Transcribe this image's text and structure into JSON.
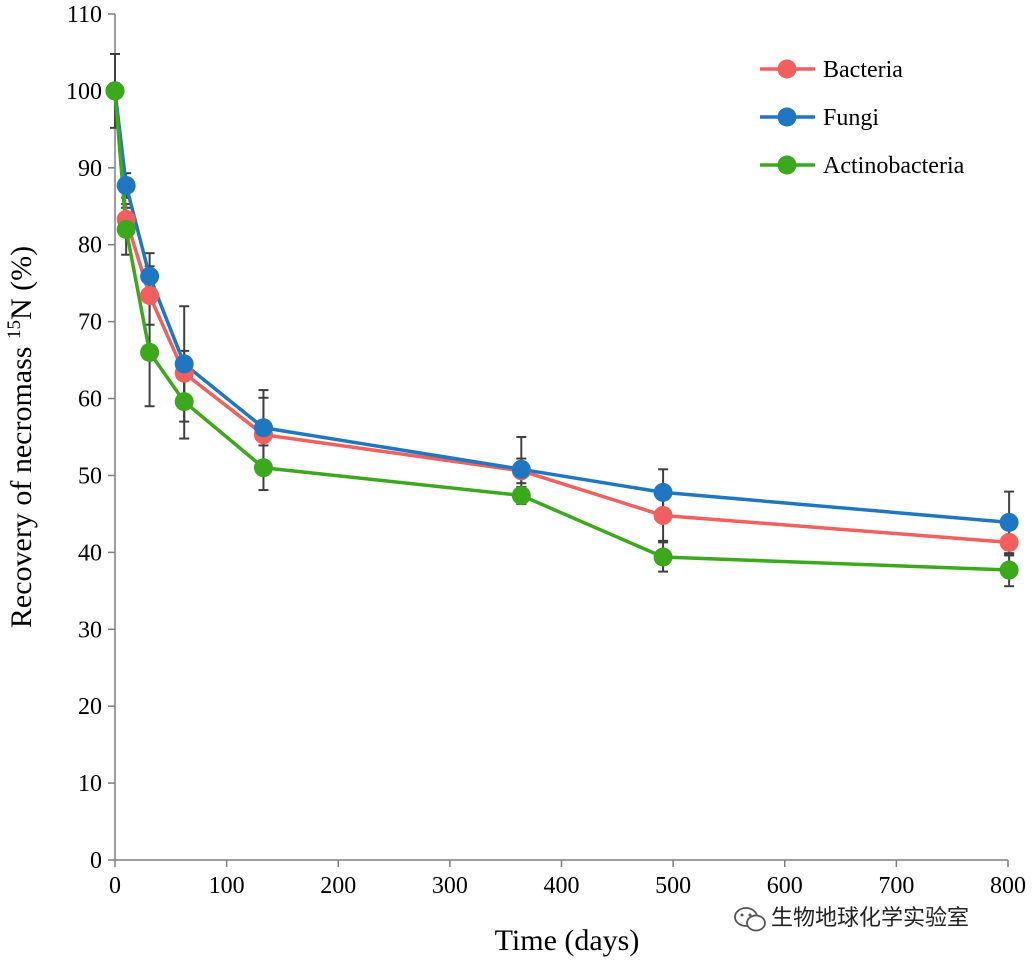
{
  "chart_data": {
    "type": "line",
    "xlabel": "Time (days)",
    "ylabel_parts": {
      "prefix": "Recovery of necromass ",
      "sup": "15",
      "suffix": "N (%)"
    },
    "xlim": [
      0,
      800
    ],
    "ylim": [
      0,
      110
    ],
    "xticks": [
      0,
      100,
      200,
      300,
      400,
      500,
      600,
      700,
      800
    ],
    "yticks": [
      0,
      10,
      20,
      30,
      40,
      50,
      60,
      70,
      80,
      90,
      100,
      110
    ],
    "grid": false,
    "legend_position": "top-right",
    "x": [
      0,
      10,
      31,
      62,
      133,
      364,
      491,
      801
    ],
    "series": [
      {
        "name": "Bacteria",
        "color": "#f25f5c",
        "values": [
          100,
          83.3,
          73.4,
          63.3,
          55.3,
          50.6,
          44.8,
          41.3
        ],
        "errors": [
          0,
          1.5,
          3.8,
          2.9,
          4.8,
          1.6,
          3.3,
          1.7
        ]
      },
      {
        "name": "Fungi",
        "color": "#1f77c4",
        "values": [
          100,
          87.7,
          75.9,
          64.5,
          56.2,
          50.8,
          47.8,
          43.9
        ],
        "errors": [
          4.8,
          1.6,
          3.0,
          7.5,
          4.9,
          4.2,
          3.0,
          4.0
        ]
      },
      {
        "name": "Actinobacteria",
        "color": "#3aaa1c",
        "values": [
          100,
          82.0,
          66.0,
          59.6,
          51.0,
          47.4,
          39.4,
          37.7
        ],
        "errors": [
          0,
          3.3,
          7.0,
          4.8,
          2.9,
          1.1,
          1.9,
          2.1
        ]
      }
    ]
  },
  "watermark": {
    "icon": "wechat-icon",
    "text": "生物地球化学实验室"
  }
}
